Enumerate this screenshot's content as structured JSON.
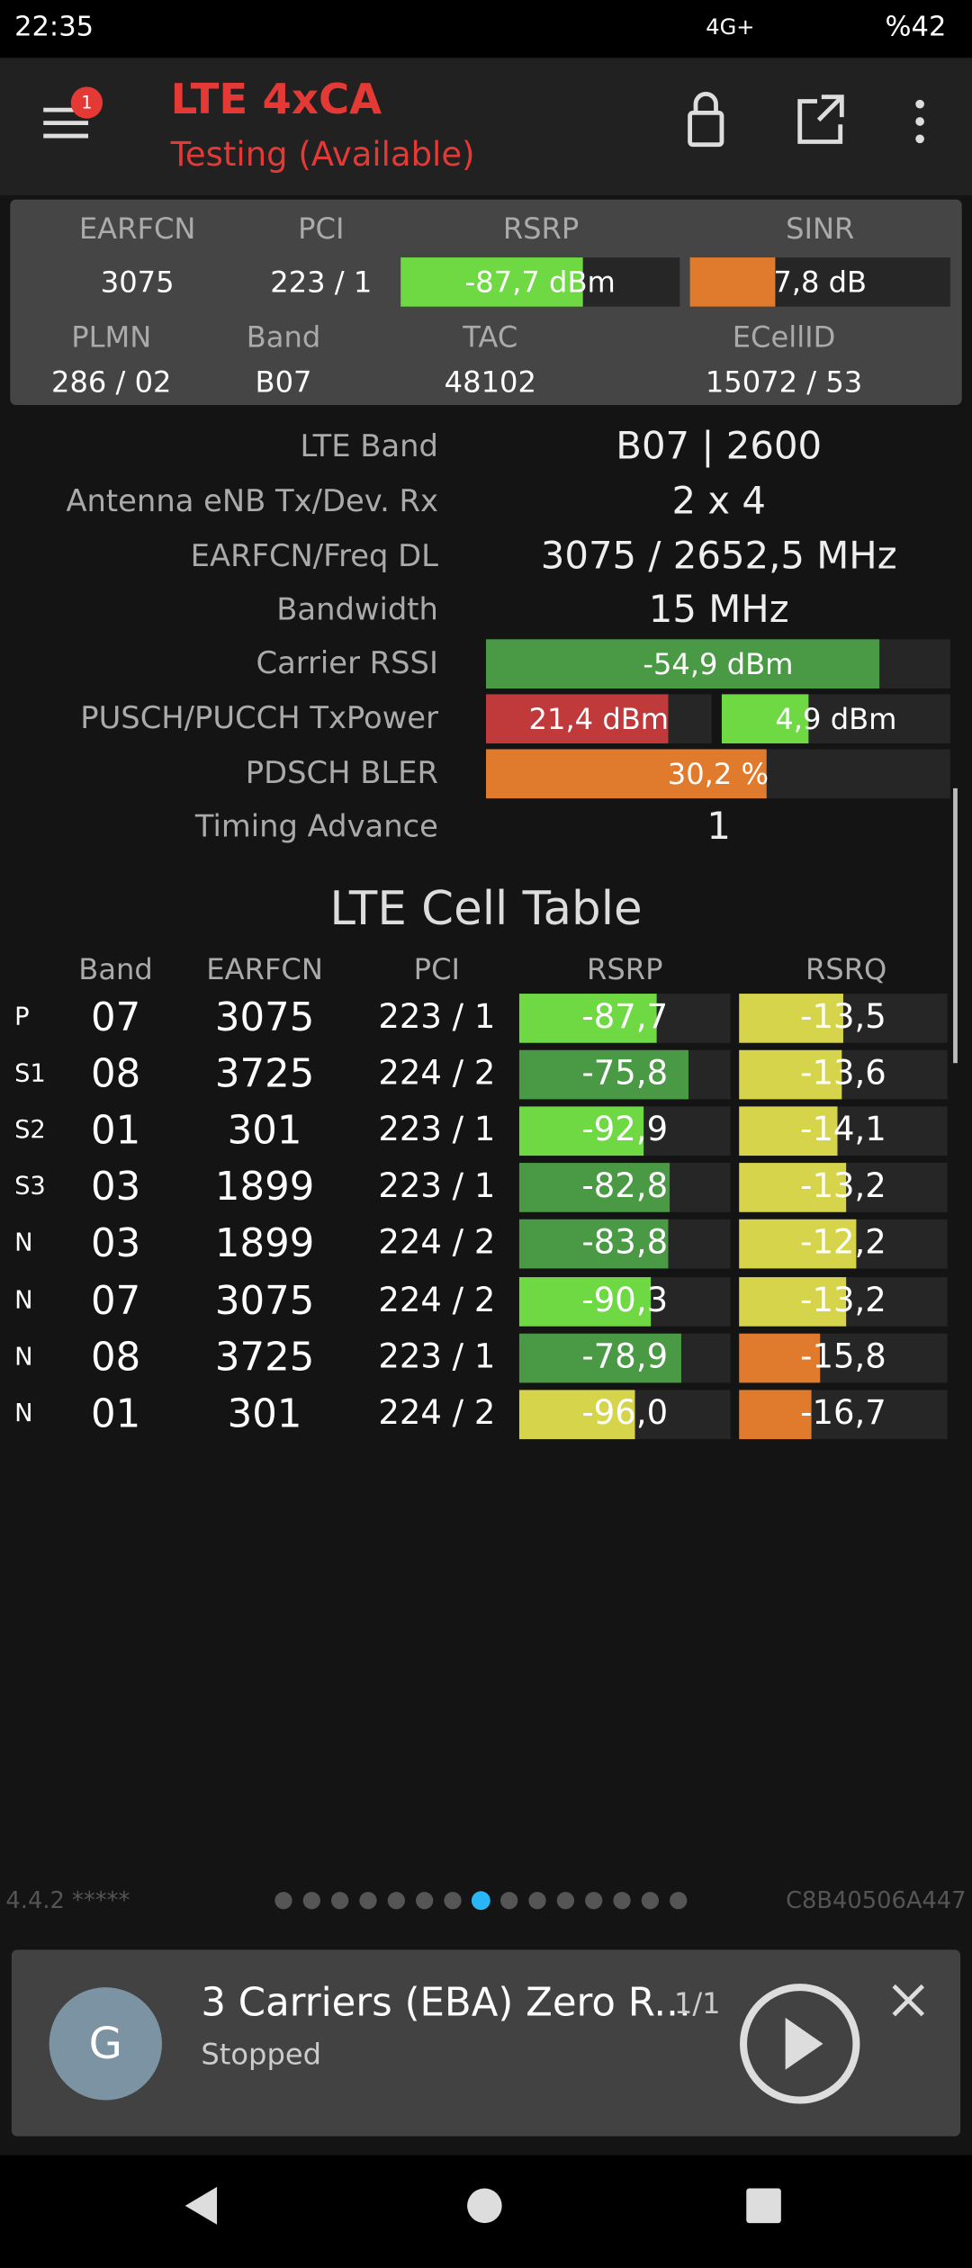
{
  "status_bar": {
    "time": "22:35",
    "network": "4G+",
    "battery": "%42"
  },
  "header": {
    "badge": "1",
    "title": "LTE 4xCA",
    "subtitle": "Testing (Available)"
  },
  "summary": {
    "row1_labels": [
      "EARFCN",
      "PCI",
      "RSRP",
      "SINR"
    ],
    "earfcn": "3075",
    "pci": "223 / 1",
    "rsrp": {
      "value": -87.7,
      "label": "-87,7 dBm",
      "color": "#6fd944"
    },
    "sinr": {
      "value": 7.8,
      "label": "7,8 dB",
      "color": "#e07b2e"
    },
    "row2_labels": [
      "PLMN",
      "Band",
      "TAC",
      "ECellID"
    ],
    "row2_values": [
      "286 / 02",
      "B07",
      "48102",
      "15072 / 53"
    ]
  },
  "details": {
    "lte_band": {
      "label": "LTE Band",
      "value": "B07 | 2600"
    },
    "antenna": {
      "label": "Antenna eNB Tx/Dev. Rx",
      "value": "2 x 4"
    },
    "earfcn_freq": {
      "label": "EARFCN/Freq DL",
      "value": "3075 / 2652,5 MHz"
    },
    "bandwidth": {
      "label": "Bandwidth",
      "value": "15 MHz"
    },
    "carrier_rssi": {
      "label": "Carrier RSSI",
      "value": -54.9,
      "value_label": "-54,9 dBm",
      "color": "#4a9a45"
    },
    "tx_power": {
      "label": "PUSCH/PUCCH TxPower",
      "pusch": {
        "value": 21.4,
        "label": "21,4 dBm",
        "color": "#c0393b"
      },
      "pucch": {
        "value": 4.9,
        "label": "4,9 dBm",
        "color": "#6fd944"
      }
    },
    "pdsch_bler": {
      "label": "PDSCH BLER",
      "value": 30.2,
      "value_label": "30,2 %",
      "color": "#e07b2e"
    },
    "timing_advance": {
      "label": "Timing Advance",
      "value": "1"
    }
  },
  "cell_table": {
    "title": "LTE Cell Table",
    "columns": [
      "Band",
      "EARFCN",
      "PCI",
      "RSRP",
      "RSRQ"
    ],
    "rows": [
      {
        "tag": "P",
        "band": "07",
        "earfcn": "3075",
        "pci": "223 / 1",
        "rsrp": {
          "value": -87.7,
          "label": "-87,7",
          "color": "#6fd944"
        },
        "rsrq": {
          "value": -13.5,
          "label": "-13,5",
          "color": "#d6d44a"
        }
      },
      {
        "tag": "S1",
        "band": "08",
        "earfcn": "3725",
        "pci": "224 / 2",
        "rsrp": {
          "value": -75.8,
          "label": "-75,8",
          "color": "#4a9a45"
        },
        "rsrq": {
          "value": -13.6,
          "label": "-13,6",
          "color": "#d6d44a"
        }
      },
      {
        "tag": "S2",
        "band": "01",
        "earfcn": "301",
        "pci": "223 / 1",
        "rsrp": {
          "value": -92.9,
          "label": "-92,9",
          "color": "#6fd944"
        },
        "rsrq": {
          "value": -14.1,
          "label": "-14,1",
          "color": "#d6d44a"
        }
      },
      {
        "tag": "S3",
        "band": "03",
        "earfcn": "1899",
        "pci": "223 / 1",
        "rsrp": {
          "value": -82.8,
          "label": "-82,8",
          "color": "#4a9a45"
        },
        "rsrq": {
          "value": -13.2,
          "label": "-13,2",
          "color": "#d6d44a"
        }
      },
      {
        "tag": "N",
        "band": "03",
        "earfcn": "1899",
        "pci": "224 / 2",
        "rsrp": {
          "value": -83.8,
          "label": "-83,8",
          "color": "#4a9a45"
        },
        "rsrq": {
          "value": -12.2,
          "label": "-12,2",
          "color": "#d6d44a"
        }
      },
      {
        "tag": "N",
        "band": "07",
        "earfcn": "3075",
        "pci": "224 / 2",
        "rsrp": {
          "value": -90.3,
          "label": "-90,3",
          "color": "#6fd944"
        },
        "rsrq": {
          "value": -13.2,
          "label": "-13,2",
          "color": "#d6d44a"
        }
      },
      {
        "tag": "N",
        "band": "08",
        "earfcn": "3725",
        "pci": "223 / 1",
        "rsrp": {
          "value": -78.9,
          "label": "-78,9",
          "color": "#4a9a45"
        },
        "rsrq": {
          "value": -15.8,
          "label": "-15,8",
          "color": "#e07b2e"
        }
      },
      {
        "tag": "N",
        "band": "01",
        "earfcn": "301",
        "pci": "224 / 2",
        "rsrp": {
          "value": -96.0,
          "label": "-96,0",
          "color": "#d6d44a"
        },
        "rsrq": {
          "value": -16.7,
          "label": "-16,7",
          "color": "#e07b2e"
        }
      }
    ]
  },
  "footer": {
    "version": "4.4.2 *****",
    "device_id": "C8B40506A447"
  },
  "media": {
    "icon": "G",
    "title": "3 Carriers (EBA) Zero R...",
    "count": "1/1",
    "status": "Stopped"
  }
}
